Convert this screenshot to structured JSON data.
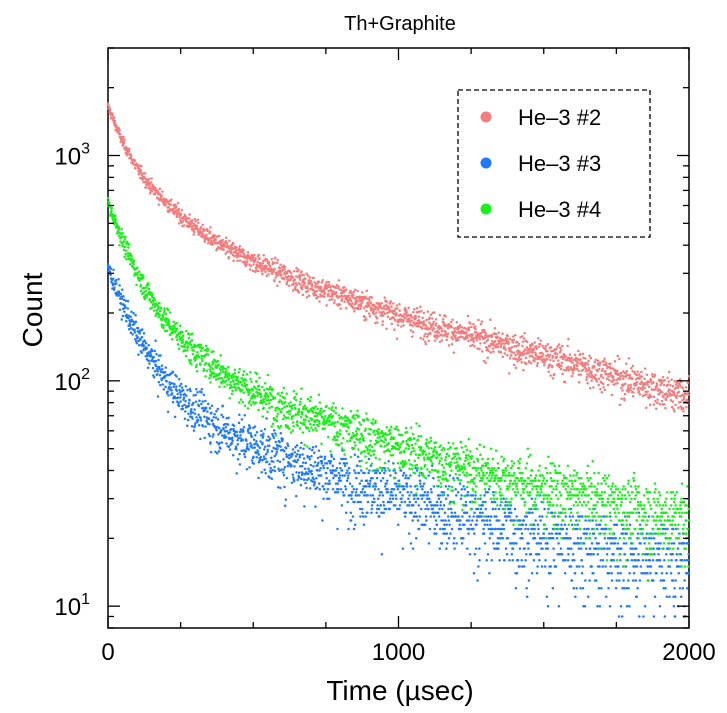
{
  "chart_data": {
    "type": "scatter",
    "title": "Th+Graphite",
    "xlabel": "Time (µsec)",
    "ylabel": "Count",
    "xlim": [
      0,
      2000
    ],
    "ylim": [
      8,
      3000
    ],
    "yscale": "log",
    "grid": false,
    "legend_position": "top-right",
    "x_ticks": [
      {
        "value": 0,
        "label": "0"
      },
      {
        "value": 1000,
        "label": "1000"
      },
      {
        "value": 2000,
        "label": "2000"
      }
    ],
    "y_ticks": [
      {
        "value": 10,
        "base": "10",
        "exp": "1"
      },
      {
        "value": 100,
        "base": "10",
        "exp": "2"
      },
      {
        "value": 1000,
        "base": "10",
        "exp": "3"
      }
    ],
    "series": [
      {
        "name": "He–3 #2",
        "color": "#f47c7c",
        "x": [
          0,
          50,
          100,
          150,
          200,
          250,
          300,
          400,
          500,
          600,
          700,
          800,
          1000,
          1200,
          1400,
          1600,
          1800,
          2000
        ],
        "y": [
          1650,
          1150,
          880,
          720,
          620,
          540,
          480,
          390,
          340,
          300,
          265,
          240,
          195,
          165,
          140,
          120,
          100,
          85
        ]
      },
      {
        "name": "He–3 #3",
        "color": "#1e7bff",
        "x": [
          0,
          50,
          100,
          150,
          200,
          250,
          300,
          400,
          500,
          600,
          700,
          800,
          1000,
          1200,
          1400,
          1600,
          1800,
          2000
        ],
        "y": [
          320,
          220,
          160,
          125,
          100,
          85,
          75,
          60,
          52,
          46,
          41,
          37,
          31,
          26,
          22,
          19,
          17,
          15
        ]
      },
      {
        "name": "He–3 #4",
        "color": "#19f019",
        "x": [
          0,
          50,
          100,
          150,
          200,
          250,
          300,
          400,
          500,
          600,
          700,
          800,
          1000,
          1200,
          1400,
          1600,
          1800,
          2000
        ],
        "y": [
          620,
          420,
          300,
          230,
          185,
          155,
          135,
          107,
          90,
          78,
          69,
          62,
          51,
          42,
          36,
          31,
          27,
          24
        ]
      }
    ]
  }
}
